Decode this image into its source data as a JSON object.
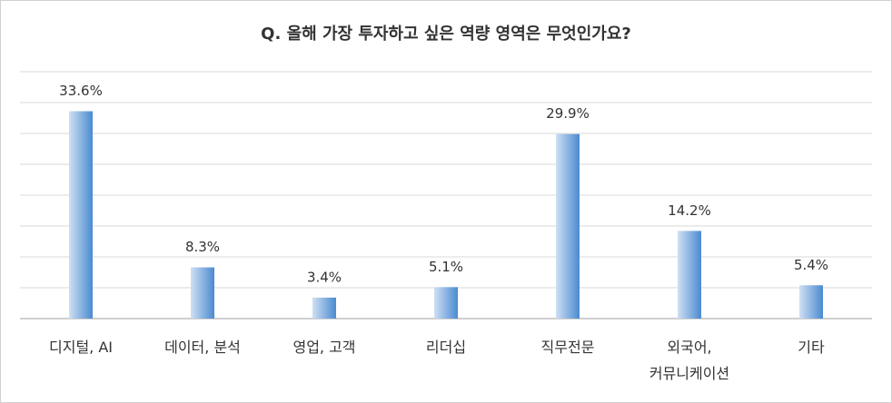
{
  "chart_data": {
    "type": "bar",
    "title": "Q. 올해 가장 투자하고 싶은 역량 영역은 무엇인가요?",
    "categories": [
      "디지털, AI",
      "데이터, 분석",
      "영업, 고객",
      "리더십",
      "직무전문",
      "외국어,\n커뮤니케이션",
      "기타"
    ],
    "values": [
      33.6,
      8.3,
      3.4,
      5.1,
      29.9,
      14.2,
      5.4
    ],
    "value_labels": [
      "33.6%",
      "8.3%",
      "3.4%",
      "5.1%",
      "29.9%",
      "14.2%",
      "5.4%"
    ],
    "color": "#5b9bd5",
    "ylim": [
      0,
      40
    ],
    "yticks": [
      0,
      5,
      10,
      15,
      20,
      25,
      30,
      35,
      40
    ],
    "grid": true
  }
}
